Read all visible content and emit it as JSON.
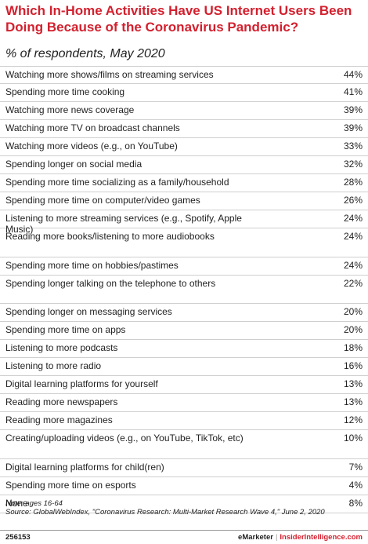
{
  "title": "Which In-Home Activities Have US Internet Users Been Doing Because of the Coronavirus Pandemic?",
  "subtitle": "% of respondents, May 2020",
  "chart_data": {
    "type": "table",
    "title": "Which In-Home Activities Have US Internet Users Been Doing Because of the Coronavirus Pandemic?",
    "subtitle": "% of respondents, May 2020",
    "rows": [
      {
        "label": "Watching more shows/films on streaming services",
        "value": 44,
        "display": "44%"
      },
      {
        "label": "Spending more time cooking",
        "value": 41,
        "display": "41%"
      },
      {
        "label": "Watching more news coverage",
        "value": 39,
        "display": "39%"
      },
      {
        "label": "Watching more TV on broadcast channels",
        "value": 39,
        "display": "39%"
      },
      {
        "label": "Watching more videos (e.g., on YouTube)",
        "value": 33,
        "display": "33%"
      },
      {
        "label": "Spending longer on social media",
        "value": 32,
        "display": "32%"
      },
      {
        "label": "Spending more time socializing as a family/household",
        "value": 28,
        "display": "28%"
      },
      {
        "label": "Spending more time on computer/video games",
        "value": 26,
        "display": "26%"
      },
      {
        "label": "Listening to more streaming services (e.g., Spotify, Apple Music)",
        "value": 24,
        "display": "24%"
      },
      {
        "label": "Reading more books/listening to more audiobooks",
        "value": 24,
        "display": "24%"
      },
      {
        "label": "Spending more time on hobbies/pastimes",
        "value": 24,
        "display": "24%"
      },
      {
        "label": "Spending longer talking on the telephone to others",
        "value": 22,
        "display": "22%"
      },
      {
        "label": "Spending longer on messaging services",
        "value": 20,
        "display": "20%"
      },
      {
        "label": "Spending more time on apps",
        "value": 20,
        "display": "20%"
      },
      {
        "label": "Listening to more podcasts",
        "value": 18,
        "display": "18%"
      },
      {
        "label": "Listening to more radio",
        "value": 16,
        "display": "16%"
      },
      {
        "label": "Digital learning platforms for yourself",
        "value": 13,
        "display": "13%"
      },
      {
        "label": "Reading more newspapers",
        "value": 13,
        "display": "13%"
      },
      {
        "label": "Reading more magazines",
        "value": 12,
        "display": "12%"
      },
      {
        "label": "Creating/uploading videos (e.g., on YouTube, TikTok, etc)",
        "value": 10,
        "display": "10%"
      },
      {
        "label": "Digital learning platforms for child(ren)",
        "value": 7,
        "display": "7%"
      },
      {
        "label": "Spending more time on esports",
        "value": 4,
        "display": "4%"
      },
      {
        "label": "None",
        "value": 8,
        "display": "8%"
      }
    ]
  },
  "note": "Note: ages 16-64",
  "source": "Source: GlobalWebIndex, \"Coronavirus Research: Multi-Market Research Wave 4,\" June 2, 2020",
  "footer": {
    "chart_id": "256153",
    "brand_emarketer": "eMarketer",
    "separator": "|",
    "brand_insider": "InsiderIntelligence.com"
  },
  "colors": {
    "title": "#d3202e",
    "text": "#222222",
    "rule": "#cfcfcf"
  }
}
